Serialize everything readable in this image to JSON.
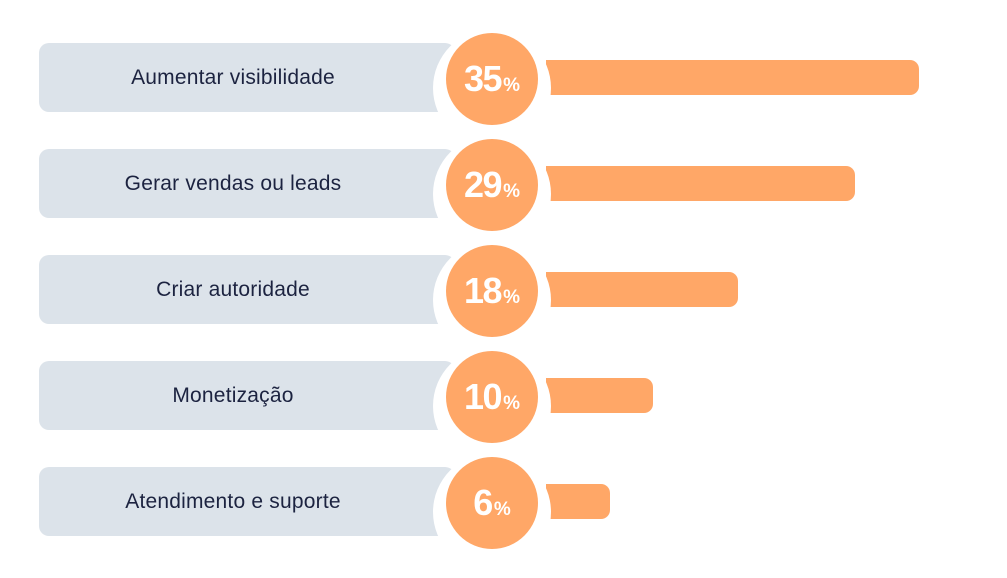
{
  "chart_data": {
    "type": "bar",
    "orientation": "horizontal",
    "categories": [
      "Aumentar visibilidade",
      "Gerar vendas ou leads",
      "Criar autoridade",
      "Monetização",
      "Atendimento e suporte"
    ],
    "values": [
      35,
      29,
      18,
      10,
      6
    ],
    "value_suffix": "%",
    "title": "",
    "xlabel": "",
    "ylabel": "",
    "xlim": [
      0,
      35
    ],
    "grid": false,
    "legend": "none"
  },
  "colors": {
    "bar": "#ffa767",
    "label_background": "#dce3ea",
    "label_text": "#1c2340",
    "value_text": "#ffffff"
  }
}
